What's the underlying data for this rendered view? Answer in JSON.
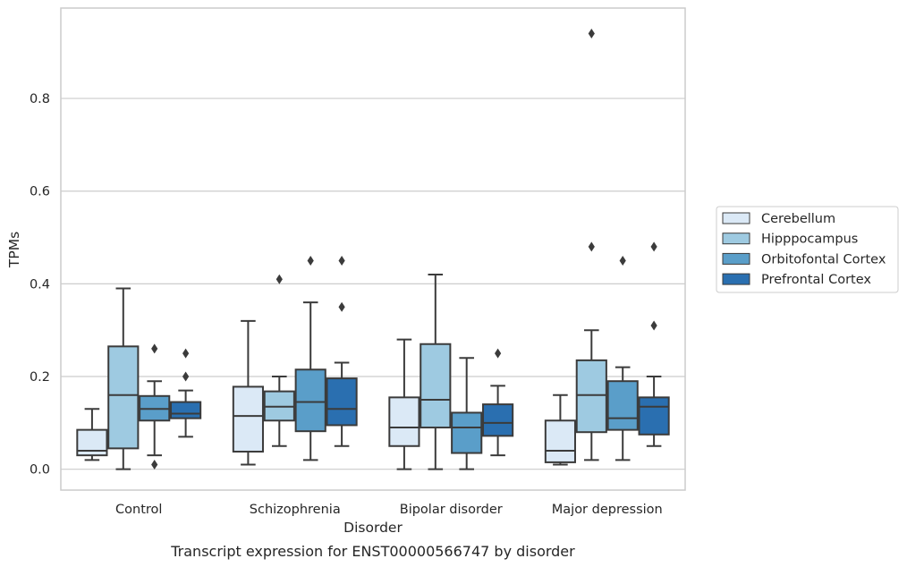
{
  "caption": "Transcript expression for ENST00000566747 by disorder",
  "chart_data": {
    "type": "box",
    "title": "",
    "xlabel": "Disorder",
    "ylabel": "TPMs",
    "ylim": [
      -0.045,
      0.995
    ],
    "yticks": [
      "0.0",
      "0.2",
      "0.4",
      "0.6",
      "0.8"
    ],
    "ytick_values": [
      0.0,
      0.2,
      0.4,
      0.6,
      0.8
    ],
    "grid": "horizontal",
    "legend_position": "right",
    "categories": [
      "Control",
      "Schizophrenia",
      "Bipolar disorder",
      "Major depression"
    ],
    "series": [
      {
        "name": "Cerebellum",
        "color": "#dbe9f6",
        "boxes": [
          {
            "whislo": 0.02,
            "q1": 0.03,
            "med": 0.04,
            "q3": 0.085,
            "whishi": 0.13,
            "fliers": []
          },
          {
            "whislo": 0.01,
            "q1": 0.038,
            "med": 0.115,
            "q3": 0.178,
            "whishi": 0.32,
            "fliers": []
          },
          {
            "whislo": 0.0,
            "q1": 0.05,
            "med": 0.09,
            "q3": 0.155,
            "whishi": 0.28,
            "fliers": []
          },
          {
            "whislo": 0.01,
            "q1": 0.015,
            "med": 0.04,
            "q3": 0.105,
            "whishi": 0.16,
            "fliers": []
          }
        ]
      },
      {
        "name": "Hipppocampus",
        "color": "#9ecae1",
        "boxes": [
          {
            "whislo": 0.0,
            "q1": 0.045,
            "med": 0.16,
            "q3": 0.265,
            "whishi": 0.39,
            "fliers": []
          },
          {
            "whislo": 0.05,
            "q1": 0.105,
            "med": 0.135,
            "q3": 0.168,
            "whishi": 0.2,
            "fliers": [
              0.41
            ]
          },
          {
            "whislo": 0.0,
            "q1": 0.09,
            "med": 0.15,
            "q3": 0.27,
            "whishi": 0.42,
            "fliers": []
          },
          {
            "whislo": 0.02,
            "q1": 0.08,
            "med": 0.16,
            "q3": 0.235,
            "whishi": 0.3,
            "fliers": [
              0.48,
              0.94
            ]
          }
        ]
      },
      {
        "name": "Orbitofontal Cortex",
        "color": "#5a9ec9",
        "boxes": [
          {
            "whislo": 0.03,
            "q1": 0.105,
            "med": 0.13,
            "q3": 0.158,
            "whishi": 0.19,
            "fliers": [
              0.01,
              0.26
            ]
          },
          {
            "whislo": 0.02,
            "q1": 0.082,
            "med": 0.145,
            "q3": 0.215,
            "whishi": 0.36,
            "fliers": [
              0.45
            ]
          },
          {
            "whislo": 0.0,
            "q1": 0.035,
            "med": 0.09,
            "q3": 0.122,
            "whishi": 0.24,
            "fliers": []
          },
          {
            "whislo": 0.02,
            "q1": 0.085,
            "med": 0.11,
            "q3": 0.19,
            "whishi": 0.22,
            "fliers": [
              0.45
            ]
          }
        ]
      },
      {
        "name": "Prefrontal Cortex",
        "color": "#2a6fb0",
        "boxes": [
          {
            "whislo": 0.07,
            "q1": 0.11,
            "med": 0.12,
            "q3": 0.145,
            "whishi": 0.17,
            "fliers": [
              0.2,
              0.25
            ]
          },
          {
            "whislo": 0.05,
            "q1": 0.095,
            "med": 0.13,
            "q3": 0.196,
            "whishi": 0.23,
            "fliers": [
              0.35,
              0.45
            ]
          },
          {
            "whislo": 0.03,
            "q1": 0.072,
            "med": 0.1,
            "q3": 0.14,
            "whishi": 0.18,
            "fliers": [
              0.25
            ]
          },
          {
            "whislo": 0.05,
            "q1": 0.075,
            "med": 0.135,
            "q3": 0.155,
            "whishi": 0.2,
            "fliers": [
              0.31,
              0.48
            ]
          }
        ]
      }
    ]
  }
}
